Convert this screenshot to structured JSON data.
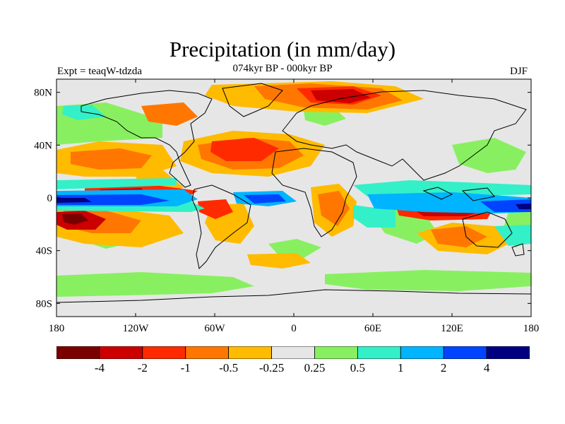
{
  "figure": {
    "title": "Precipitation (in mm/day)",
    "subtitle": "074kyr BP - 000kyr BP",
    "experiment": "Expt = teaqW-tdzda",
    "season": "DJF"
  },
  "map": {
    "projection": "cylindrical equidistant",
    "lon_range": [
      -180,
      180
    ],
    "lat_range": [
      -90,
      90
    ],
    "y_ticks": [
      "80N",
      "40N",
      "0",
      "40S",
      "80S"
    ],
    "x_ticks": [
      "180",
      "120W",
      "60W",
      "0",
      "60E",
      "120E",
      "180"
    ],
    "background_color": "#e6e6e6",
    "coastline_color": "#000000"
  },
  "colorbar": {
    "labels": [
      "-4",
      "-2",
      "-1",
      "-0.5",
      "-0.25",
      "0.25",
      "0.5",
      "1",
      "2",
      "4"
    ],
    "colors": [
      "#7a0000",
      "#cc0000",
      "#ff2a00",
      "#ff7700",
      "#ffbb00",
      "#e6e6e6",
      "#88f060",
      "#33f0c8",
      "#00b4ff",
      "#0044ff",
      "#000080"
    ]
  }
}
